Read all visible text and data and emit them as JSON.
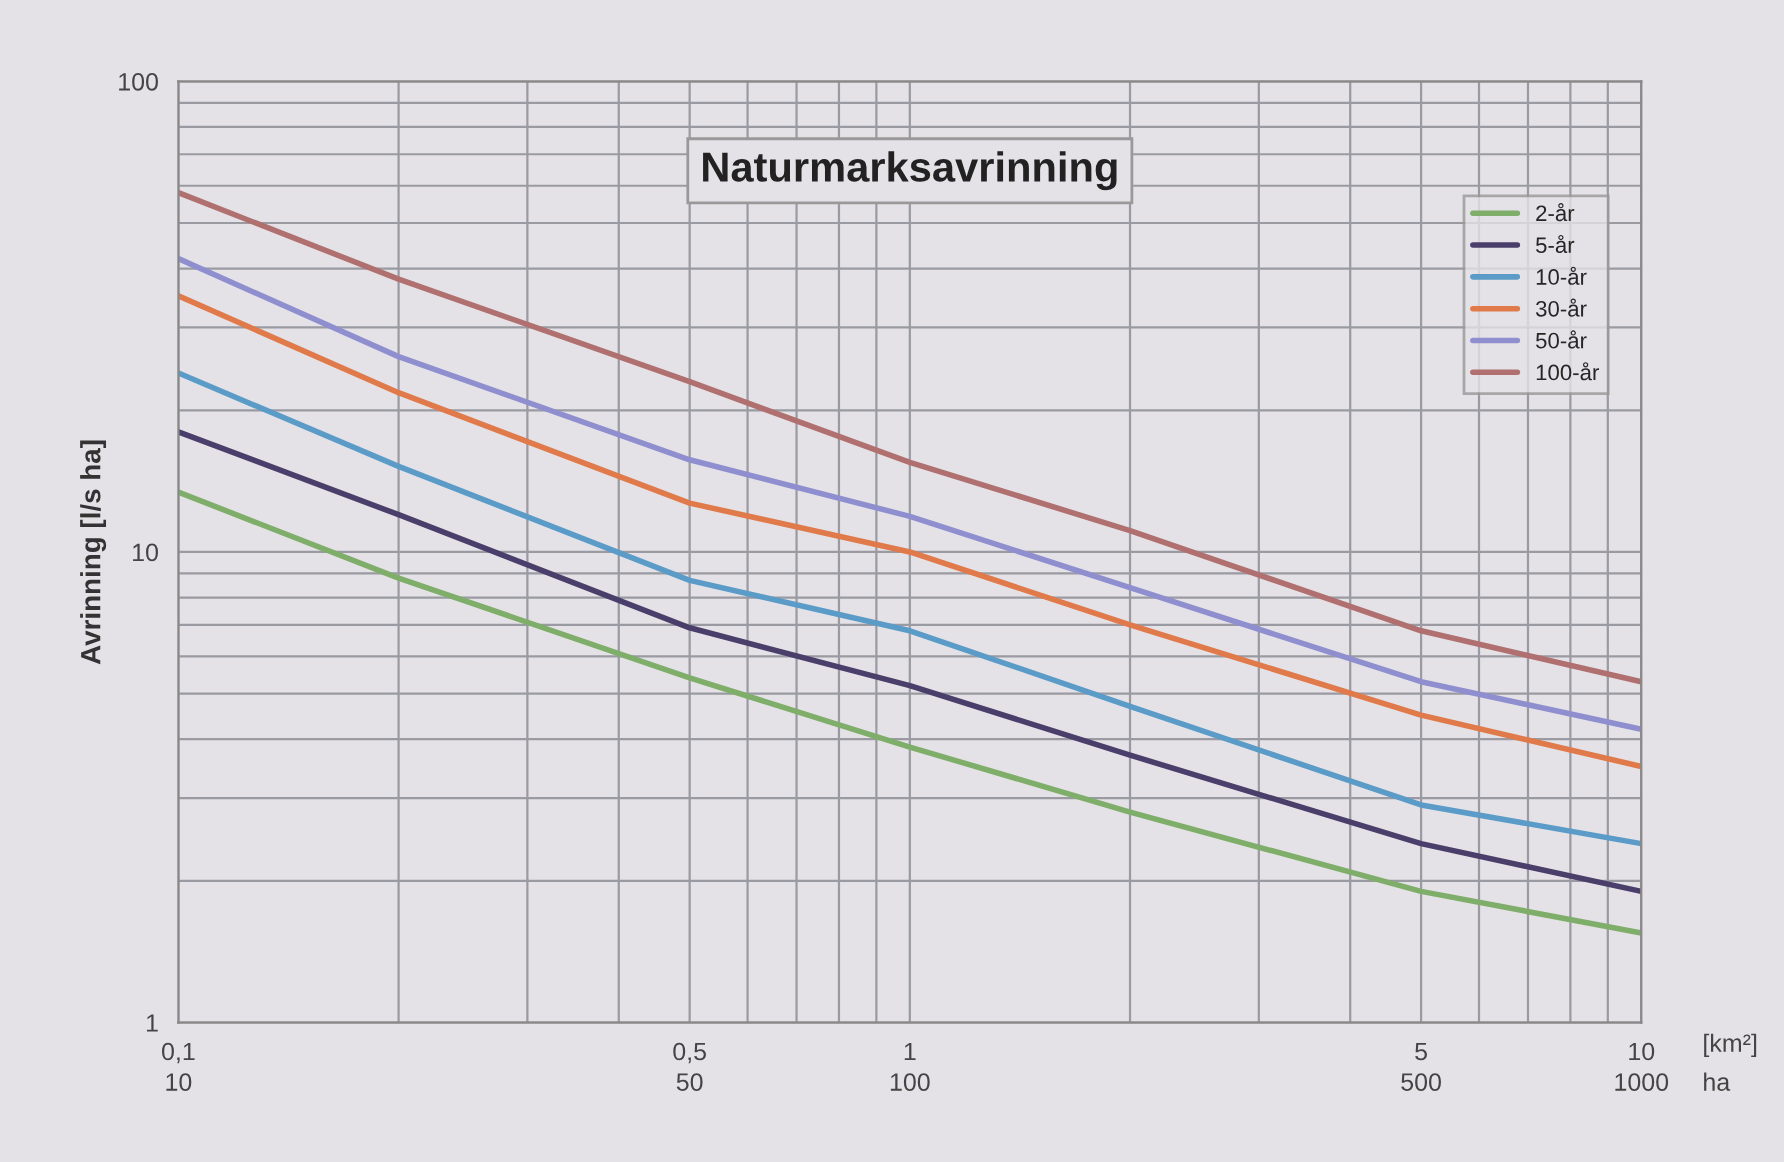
{
  "chart_data": {
    "type": "line",
    "title": "Naturmarksavrinning",
    "ylabel": "Avrinning [l/s ha]",
    "xlabel": "[km²]",
    "annotations": [
      "10",
      "50",
      "100",
      "500",
      "1000",
      "ha"
    ],
    "x": [
      0.1,
      0.2,
      0.5,
      1,
      2,
      5,
      10
    ],
    "series": [
      {
        "name": "2-år",
        "color": "#7fae6a",
        "values": [
          13.4,
          8.8,
          5.4,
          3.85,
          2.8,
          1.9,
          1.55
        ]
      },
      {
        "name": "5-år",
        "color": "#4a3f6b",
        "values": [
          18,
          12,
          6.9,
          5.2,
          3.7,
          2.4,
          1.9
        ]
      },
      {
        "name": "10-år",
        "color": "#5b9bc8",
        "values": [
          24,
          15.2,
          8.7,
          6.8,
          4.7,
          2.9,
          2.4
        ]
      },
      {
        "name": "30-år",
        "color": "#e07a4a",
        "values": [
          35,
          21.8,
          12.7,
          10,
          7,
          4.5,
          3.5
        ]
      },
      {
        "name": "50-år",
        "color": "#8f8fd0",
        "values": [
          42,
          26,
          15.7,
          11.9,
          8.4,
          5.3,
          4.2
        ]
      },
      {
        "name": "100-år",
        "color": "#b07070",
        "values": [
          58,
          38,
          23,
          15.5,
          11.1,
          6.8,
          5.3
        ]
      }
    ],
    "log": "xy",
    "xlim": [
      0.1,
      10
    ],
    "ylim": [
      1,
      100
    ],
    "xticks": [
      {
        "value": 0.1,
        "label": "0,1"
      },
      {
        "value": 0.5,
        "label": "0,5"
      },
      1,
      5,
      10
    ],
    "yticks": [
      1,
      10,
      100
    ],
    "grid": true,
    "legend": "top right",
    "marker": "none",
    "line_style": "solid"
  }
}
